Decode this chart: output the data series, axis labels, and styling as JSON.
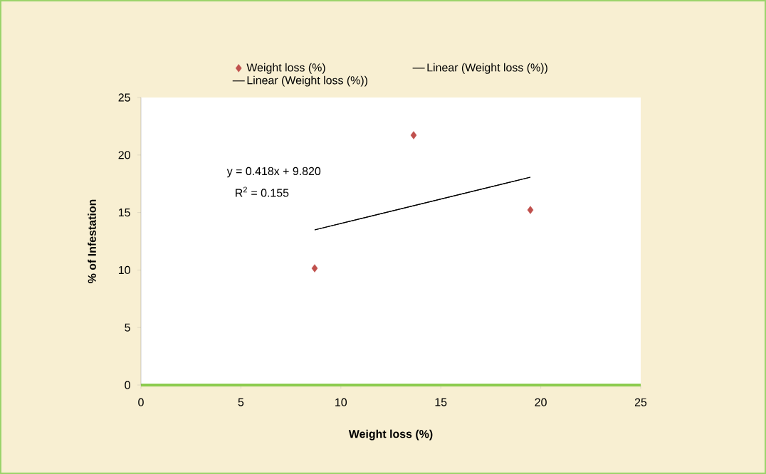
{
  "chart_data": {
    "type": "scatter",
    "xlabel": "Weight loss (%)",
    "ylabel": "% of Infestation",
    "series": [
      {
        "name": "Weight loss (%)",
        "marker": "diamond",
        "color": "#c0504d",
        "x": [
          8.69,
          13.64,
          19.48
        ],
        "values": [
          10.15,
          21.72,
          15.22
        ]
      },
      {
        "name": "Linear (Weight loss (%))",
        "type": "line",
        "line_style": "solid",
        "color": "#000000",
        "x": [
          8.69,
          19.48
        ],
        "values": [
          13.49,
          18.07
        ]
      },
      {
        "name": "Linear (Weight loss (%))",
        "type": "line",
        "line_style": "solid",
        "color": "#000000",
        "x": [
          8.69,
          19.48
        ],
        "values": [
          13.49,
          18.07
        ]
      }
    ],
    "xlim": [
      0,
      25
    ],
    "ylim": [
      0,
      25
    ],
    "xticks": [
      0,
      5,
      10,
      15,
      20,
      25
    ],
    "yticks": [
      0,
      5,
      10,
      15,
      20,
      25
    ],
    "annotations": [
      "y = 0.418x + 9.820",
      "R$^{2}$ = 0.155"
    ],
    "legend": "top"
  }
}
